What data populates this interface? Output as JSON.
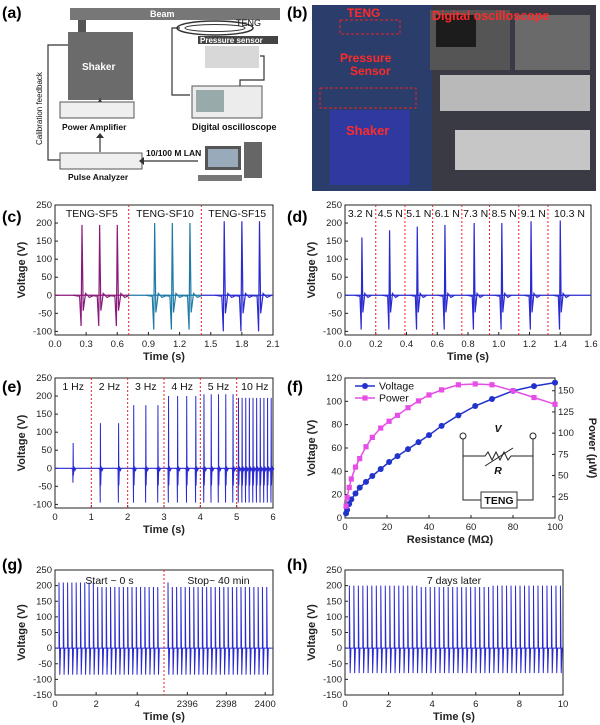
{
  "panel_labels": [
    "(a)",
    "(b)",
    "(c)",
    "(d)",
    "(e)",
    "(f)",
    "(g)",
    "(h)"
  ],
  "schematic": {
    "beam": "Beam",
    "teng": "TENG",
    "shaker": "Shaker",
    "pressure_sensor": "Pressure sensor",
    "power_amplifier": "Power Amplifier",
    "digital_oscilloscope": "Digital oscilloscope",
    "pulse_analyzer": "Pulse Analyzer",
    "lan": "10/100 M LAN",
    "calibration": "Calibration feedback"
  },
  "photo": {
    "teng": "TENG",
    "digital_oscilloscope": "Digital oscilloscope",
    "pressure_sensor": "Pressure Sensor",
    "shaker": "Shaker"
  },
  "chart_data": [
    {
      "type": "line",
      "panel": "(c)",
      "xlabel": "Time (s)",
      "ylabel": "Voltage (V)",
      "xlim": [
        0,
        2.1
      ],
      "ylim": [
        -110,
        250
      ],
      "xticks": [
        "0.0",
        "0.3",
        "0.6",
        "0.9",
        "1.2",
        "1.5",
        "1.8",
        "2.1"
      ],
      "yticks": [
        "-100",
        "-50",
        "0",
        "50",
        "100",
        "150",
        "200",
        "250"
      ],
      "segments": [
        "TENG-SF5",
        "TENG-SF10",
        "TENG-SF15"
      ],
      "series": [
        {
          "color": "#8a1a7a",
          "peaks": [
            0.26,
            0.43,
            0.6
          ],
          "amp": 195,
          "neg": -85
        },
        {
          "color": "#1f7aa6",
          "peaks": [
            0.96,
            1.13,
            1.3
          ],
          "amp": 200,
          "neg": -95
        },
        {
          "color": "#2a2ad0",
          "peaks": [
            1.63,
            1.8,
            1.97
          ],
          "amp": 205,
          "neg": -100
        }
      ],
      "dividers": [
        0.71,
        1.41
      ]
    },
    {
      "type": "line",
      "panel": "(d)",
      "xlabel": "Time (s)",
      "ylabel": "Voltage (V)",
      "xlim": [
        0,
        1.6
      ],
      "ylim": [
        -110,
        250
      ],
      "xticks": [
        "0.0",
        "0.2",
        "0.4",
        "0.6",
        "0.8",
        "1.0",
        "1.2",
        "1.4",
        "1.6"
      ],
      "yticks": [
        "-100",
        "-50",
        "0",
        "50",
        "100",
        "150",
        "200",
        "250"
      ],
      "segments": [
        "3.2 N",
        "4.5 N",
        "5.1 N",
        "6.1 N",
        "7.3 N",
        "8.5 N",
        "9.1 N",
        "10.3 N"
      ],
      "peaks": [
        0.11,
        0.29,
        0.47,
        0.65,
        0.84,
        1.02,
        1.21,
        1.4
      ],
      "amps": [
        160,
        180,
        190,
        195,
        200,
        200,
        205,
        207
      ],
      "dividers": [
        0.2,
        0.39,
        0.57,
        0.76,
        0.94,
        1.13,
        1.32
      ]
    },
    {
      "type": "line",
      "panel": "(e)",
      "xlabel": "Time (s)",
      "ylabel": "Voltage (V)",
      "xlim": [
        0,
        6
      ],
      "ylim": [
        -110,
        250
      ],
      "xticks": [
        "0",
        "1",
        "2",
        "3",
        "4",
        "5",
        "6"
      ],
      "yticks": [
        "-100",
        "-50",
        "0",
        "50",
        "100",
        "150",
        "200",
        "250"
      ],
      "segments": [
        "1 Hz",
        "2 Hz",
        "3 Hz",
        "4 Hz",
        "5 Hz",
        "10 Hz"
      ],
      "freqs": [
        1,
        2,
        3,
        4,
        5,
        10
      ],
      "amps": [
        70,
        125,
        175,
        200,
        205,
        195
      ],
      "dividers": [
        1,
        2,
        3,
        4,
        5
      ]
    },
    {
      "type": "line",
      "panel": "(f)",
      "xlabel": "Resistance (MΩ)",
      "ylabel": "Voltage (V)",
      "y2label": "Power (μW)",
      "xlim": [
        0,
        100
      ],
      "ylim": [
        0,
        120
      ],
      "y2lim": [
        0,
        165
      ],
      "xticks": [
        "0",
        "20",
        "40",
        "60",
        "80",
        "100"
      ],
      "yticks": [
        "0",
        "20",
        "40",
        "60",
        "80",
        "100",
        "120"
      ],
      "y2ticks": [
        "0",
        "25",
        "50",
        "75",
        "100",
        "125",
        "150"
      ],
      "legend": [
        "Voltage",
        "Power"
      ],
      "circuit": {
        "v": "V",
        "r": "R",
        "box": "TENG"
      },
      "series": [
        {
          "name": "Voltage",
          "color": "#2233cc",
          "x": [
            0.5,
            1,
            2,
            3,
            5,
            7,
            10,
            13,
            17,
            21,
            25,
            30,
            35,
            40,
            46,
            54,
            62,
            70,
            80,
            90,
            100
          ],
          "y": [
            4,
            7,
            12,
            16,
            21,
            26,
            31,
            36,
            42,
            48,
            53,
            59,
            65,
            71,
            79,
            88,
            96,
            102,
            109,
            113,
            116
          ]
        },
        {
          "name": "Power",
          "color": "#e64ee6",
          "x": [
            0.5,
            1,
            2,
            3,
            5,
            7,
            10,
            13,
            17,
            21,
            25,
            30,
            35,
            40,
            46,
            54,
            62,
            70,
            80,
            90,
            100
          ],
          "y": [
            14,
            24,
            36,
            46,
            60,
            70,
            84,
            95,
            106,
            114,
            121,
            130,
            138,
            145,
            151,
            157,
            158,
            157,
            150,
            142,
            134
          ]
        }
      ]
    },
    {
      "type": "line",
      "panel": "(g)",
      "xlabel": "Time (s)",
      "ylabel": "Voltage (V)",
      "ylim": [
        -150,
        250
      ],
      "xticks_left": [
        "0",
        "2",
        "4"
      ],
      "xticks_right": [
        "2396",
        "2398",
        "2400"
      ],
      "yticks": [
        "-150",
        "-100",
        "-50",
        "0",
        "50",
        "100",
        "150",
        "200",
        "250"
      ],
      "segments": [
        "Start ~ 0 s",
        "Stop~ 40 min"
      ],
      "amp": 210,
      "neg": -85
    },
    {
      "type": "line",
      "panel": "(h)",
      "xlabel": "Time (s)",
      "ylabel": "Voltage (V)",
      "xlim": [
        0,
        10
      ],
      "ylim": [
        -150,
        250
      ],
      "xticks": [
        "0",
        "2",
        "4",
        "6",
        "8",
        "10"
      ],
      "yticks": [
        "-150",
        "-100",
        "-50",
        "0",
        "50",
        "100",
        "150",
        "200",
        "250"
      ],
      "annotation": "7 days later",
      "amp": 200,
      "neg": -80
    }
  ]
}
